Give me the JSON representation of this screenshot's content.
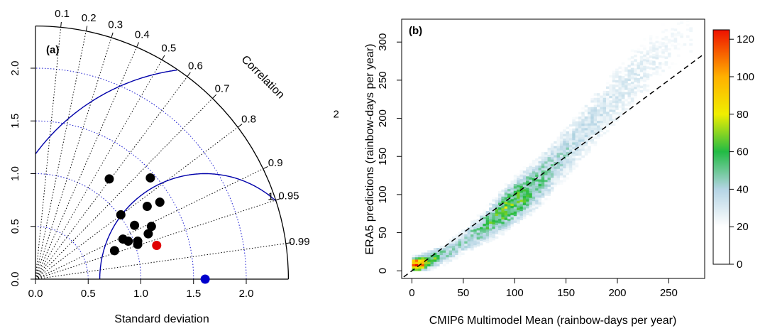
{
  "chart_data": [
    {
      "type": "scatter",
      "subtype": "taylor-diagram",
      "panel_label": "(a)",
      "xlabel": "Standard deviation",
      "arc_label": "Correlation",
      "ylim": [
        0,
        2.4
      ],
      "axis_ticks": [
        "0.0",
        "0.5",
        "1.0",
        "1.5",
        "2.0"
      ],
      "correlation_ticks": [
        "0.1",
        "0.2",
        "0.3",
        "0.4",
        "0.5",
        "0.6",
        "0.7",
        "0.8",
        "0.9",
        "0.95",
        "0.99"
      ],
      "sd_circles": [
        0.5,
        1.0,
        1.5,
        2.0
      ],
      "rmse_contours": [
        {
          "label": "1",
          "value": 1
        },
        {
          "label": "2",
          "value": 2
        }
      ],
      "reference": {
        "x": 1.61,
        "y": 0.0,
        "color": "#0000cc"
      },
      "highlight": {
        "x": 1.15,
        "y": 0.32,
        "color": "#e00000"
      },
      "points": [
        {
          "x": 0.7,
          "y": 0.95
        },
        {
          "x": 1.09,
          "y": 0.96
        },
        {
          "x": 1.18,
          "y": 0.73
        },
        {
          "x": 1.06,
          "y": 0.69
        },
        {
          "x": 0.81,
          "y": 0.61
        },
        {
          "x": 0.94,
          "y": 0.51
        },
        {
          "x": 1.1,
          "y": 0.5
        },
        {
          "x": 1.07,
          "y": 0.43
        },
        {
          "x": 0.83,
          "y": 0.38
        },
        {
          "x": 0.88,
          "y": 0.36
        },
        {
          "x": 0.97,
          "y": 0.36
        },
        {
          "x": 0.97,
          "y": 0.33
        },
        {
          "x": 0.75,
          "y": 0.27
        }
      ],
      "colors": {
        "points": "#000000",
        "contours": "#0000aa"
      }
    },
    {
      "type": "heatmap",
      "panel_label": "(b)",
      "xlabel": "CMIP6 Multimodel Mean (rainbow-days per year)",
      "ylabel": "ERA5 predictions (rainbow-days per year)",
      "xlim": [
        -10,
        285
      ],
      "ylim": [
        -10,
        330
      ],
      "xticks": [
        "0",
        "50",
        "100",
        "150",
        "200",
        "250"
      ],
      "yticks": [
        "0",
        "50",
        "100",
        "150",
        "200",
        "250",
        "300"
      ],
      "one_to_one_line": true,
      "colorbar": {
        "min": 0,
        "max": 125,
        "ticks": [
          "0",
          "20",
          "40",
          "60",
          "80",
          "100",
          "120"
        ]
      },
      "density_ridge": [
        {
          "x": 5,
          "y": 7,
          "count": 120
        },
        {
          "x": 15,
          "y": 12,
          "count": 70
        },
        {
          "x": 30,
          "y": 20,
          "count": 45
        },
        {
          "x": 50,
          "y": 38,
          "count": 40
        },
        {
          "x": 75,
          "y": 62,
          "count": 55
        },
        {
          "x": 90,
          "y": 80,
          "count": 65
        },
        {
          "x": 105,
          "y": 96,
          "count": 60
        },
        {
          "x": 120,
          "y": 112,
          "count": 50
        },
        {
          "x": 140,
          "y": 140,
          "count": 40
        },
        {
          "x": 160,
          "y": 172,
          "count": 35
        },
        {
          "x": 185,
          "y": 210,
          "count": 30
        },
        {
          "x": 210,
          "y": 245,
          "count": 28
        },
        {
          "x": 235,
          "y": 275,
          "count": 24
        },
        {
          "x": 260,
          "y": 305,
          "count": 20
        }
      ]
    }
  ]
}
